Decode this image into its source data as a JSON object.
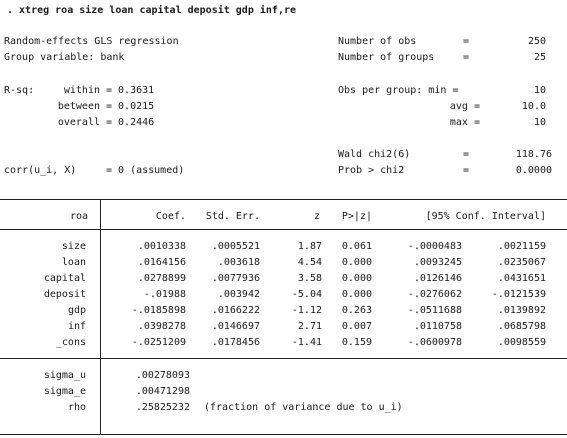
{
  "command": ". xtreg roa size loan capital deposit gdp inf,re",
  "header": {
    "model": "Random-effects GLS regression",
    "group_var_label": "Group variable: bank",
    "nobs_label": "Number of obs",
    "nobs": "250",
    "ngroups_label": "Number of groups",
    "ngroups": "25",
    "eq": "=",
    "rsq_label": "R-sq:",
    "rsq_within_label": "within",
    "rsq_within": "= 0.3631",
    "rsq_between_label": "between",
    "rsq_between": "= 0.0215",
    "rsq_overall_label": "overall",
    "rsq_overall": "= 0.2446",
    "obs_per_group_label": "Obs per group: min =",
    "obs_min": "10",
    "avg_label": "avg =",
    "obs_avg": "10.0",
    "max_label": "max =",
    "obs_max": "10",
    "wald_label": "Wald chi2(6)",
    "wald": "118.76",
    "corr_label": "corr(u_i, X)",
    "corr_value": "= 0 (assumed)",
    "prob_label": "Prob > chi2",
    "prob": "0.0000"
  },
  "table": {
    "columns": [
      "roa",
      "Coef.",
      "Std. Err.",
      "z",
      "P>|z|",
      "[95% Conf. Interval]"
    ],
    "rows": [
      {
        "var": "size",
        "coef": ".0010338",
        "se": ".0005521",
        "z": "1.87",
        "p": "0.061",
        "lo": "-.0000483",
        "hi": ".0021159"
      },
      {
        "var": "loan",
        "coef": ".0164156",
        "se": ".003618",
        "z": "4.54",
        "p": "0.000",
        "lo": ".0093245",
        "hi": ".0235067"
      },
      {
        "var": "capital",
        "coef": ".0278899",
        "se": ".0077936",
        "z": "3.58",
        "p": "0.000",
        "lo": ".0126146",
        "hi": ".0431651"
      },
      {
        "var": "deposit",
        "coef": "-.01988",
        "se": ".003942",
        "z": "-5.04",
        "p": "0.000",
        "lo": "-.0276062",
        "hi": "-.0121539"
      },
      {
        "var": "gdp",
        "coef": "-.0185898",
        "se": ".0166222",
        "z": "-1.12",
        "p": "0.263",
        "lo": "-.0511688",
        "hi": ".0139892"
      },
      {
        "var": "inf",
        "coef": ".0398278",
        "se": ".0146697",
        "z": "2.71",
        "p": "0.007",
        "lo": ".0110758",
        "hi": ".0685798"
      },
      {
        "var": "_cons",
        "coef": "-.0251209",
        "se": ".0178456",
        "z": "-1.41",
        "p": "0.159",
        "lo": "-.0600978",
        "hi": ".0098559"
      }
    ],
    "sigma": [
      {
        "var": "sigma_u",
        "value": ".00278093"
      },
      {
        "var": "sigma_e",
        "value": ".00471298"
      },
      {
        "var": "rho",
        "value": ".25825232"
      }
    ],
    "rho_note": "(fraction of variance due to u_i)"
  }
}
